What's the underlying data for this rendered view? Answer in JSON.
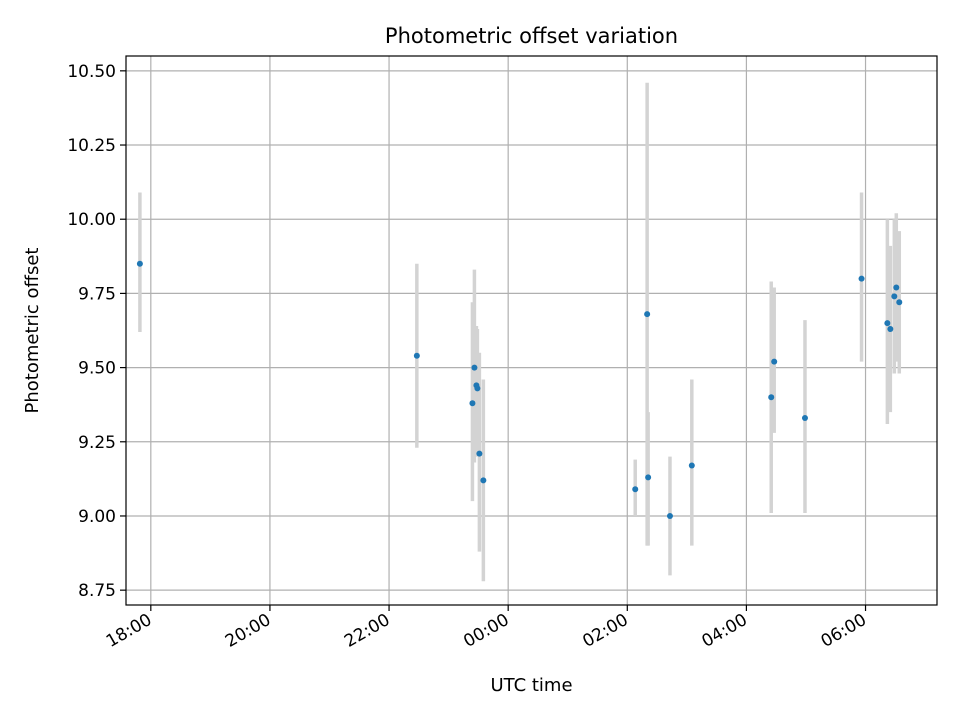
{
  "chart_data": {
    "type": "scatter",
    "title": "Photometric offset variation",
    "xlabel": "UTC time",
    "ylabel": "Photometric offset",
    "x_unit": "UTC time (HH:MM, spans midnight into next day)",
    "xlim": [
      "17:35",
      "07:12+1"
    ],
    "ylim": [
      8.7,
      10.55
    ],
    "x_ticks": [
      {
        "value": "18:00",
        "label": "18:00"
      },
      {
        "value": "20:00",
        "label": "20:00"
      },
      {
        "value": "22:00",
        "label": "22:00"
      },
      {
        "value": "00:00+1",
        "label": "00:00"
      },
      {
        "value": "02:00+1",
        "label": "02:00"
      },
      {
        "value": "04:00+1",
        "label": "04:00"
      },
      {
        "value": "06:00+1",
        "label": "06:00"
      }
    ],
    "y_ticks": [
      8.75,
      9.0,
      9.25,
      9.5,
      9.75,
      10.0,
      10.25,
      10.5
    ],
    "y_tick_labels": [
      "8.75",
      "9.00",
      "9.25",
      "9.50",
      "9.75",
      "10.00",
      "10.25",
      "10.50"
    ],
    "grid": true,
    "marker_color": "#1f77b4",
    "errorbar_color": "#d3d3d3",
    "series": [
      {
        "points": [
          {
            "x": "17:49",
            "y": 9.85,
            "ylo": 9.62,
            "yhi": 10.09
          },
          {
            "x": "22:28",
            "y": 9.54,
            "ylo": 9.23,
            "yhi": 9.85
          },
          {
            "x": "23:24",
            "y": 9.38,
            "ylo": 9.05,
            "yhi": 9.72
          },
          {
            "x": "23:26",
            "y": 9.5,
            "ylo": 9.18,
            "yhi": 9.83
          },
          {
            "x": "23:28",
            "y": 9.44,
            "ylo": 9.23,
            "yhi": 9.64
          },
          {
            "x": "23:29",
            "y": 9.43,
            "ylo": 9.2,
            "yhi": 9.63
          },
          {
            "x": "23:31",
            "y": 9.21,
            "ylo": 8.88,
            "yhi": 9.55
          },
          {
            "x": "23:35",
            "y": 9.12,
            "ylo": 8.78,
            "yhi": 9.46
          },
          {
            "x": "02:08+1",
            "y": 9.09,
            "ylo": 9.0,
            "yhi": 9.19
          },
          {
            "x": "02:20+1",
            "y": 9.68,
            "ylo": 8.9,
            "yhi": 10.46
          },
          {
            "x": "02:21+1",
            "y": 9.13,
            "ylo": 8.9,
            "yhi": 9.35
          },
          {
            "x": "02:43+1",
            "y": 9.0,
            "ylo": 8.8,
            "yhi": 9.2
          },
          {
            "x": "03:05+1",
            "y": 9.17,
            "ylo": 8.9,
            "yhi": 9.46
          },
          {
            "x": "04:25+1",
            "y": 9.4,
            "ylo": 9.01,
            "yhi": 9.79
          },
          {
            "x": "04:28+1",
            "y": 9.52,
            "ylo": 9.28,
            "yhi": 9.77
          },
          {
            "x": "04:59+1",
            "y": 9.33,
            "ylo": 9.01,
            "yhi": 9.66
          },
          {
            "x": "05:56+1",
            "y": 9.8,
            "ylo": 9.52,
            "yhi": 10.09
          },
          {
            "x": "06:22+1",
            "y": 9.65,
            "ylo": 9.31,
            "yhi": 10.0
          },
          {
            "x": "06:25+1",
            "y": 9.63,
            "ylo": 9.35,
            "yhi": 9.91
          },
          {
            "x": "06:29+1",
            "y": 9.74,
            "ylo": 9.48,
            "yhi": 10.0
          },
          {
            "x": "06:31+1",
            "y": 9.77,
            "ylo": 9.52,
            "yhi": 10.02
          },
          {
            "x": "06:34+1",
            "y": 9.72,
            "ylo": 9.48,
            "yhi": 9.96
          }
        ]
      }
    ]
  }
}
